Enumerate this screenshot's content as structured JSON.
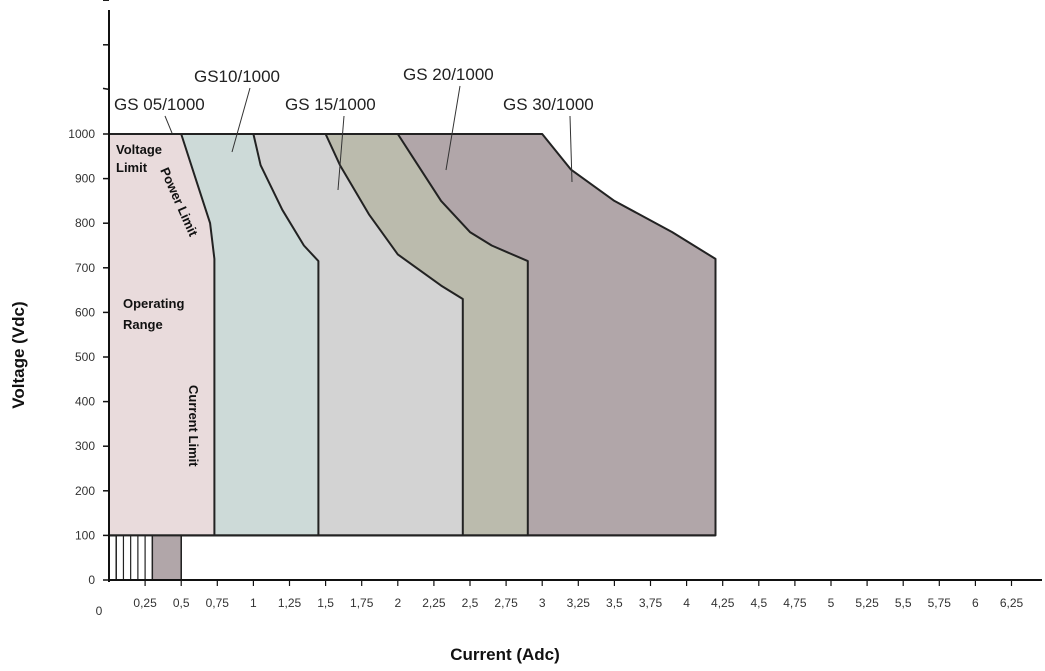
{
  "chart_data": {
    "type": "area",
    "xlabel": "Current (Adc)",
    "ylabel": "Voltage (Vdc)",
    "xlim": [
      0,
      6.5
    ],
    "ylim": [
      0,
      1000
    ],
    "x_ticks": [
      "0,25",
      "0,5",
      "0,75",
      "1",
      "1,25",
      "1,5",
      "1,75",
      "2",
      "2,25",
      "2,5",
      "2,75",
      "3",
      "3,25",
      "3,5",
      "3,75",
      "4",
      "4,25",
      "4,5",
      "4,75",
      "5",
      "5,25",
      "5,5",
      "5,75",
      "6",
      "6,25"
    ],
    "x_tick_values": [
      0.25,
      0.5,
      0.75,
      1,
      1.25,
      1.5,
      1.75,
      2,
      2.25,
      2.5,
      2.75,
      3,
      3.25,
      3.5,
      3.75,
      4,
      4.25,
      4.5,
      4.75,
      5,
      5.25,
      5.5,
      5.75,
      6,
      6.25
    ],
    "x_origin_label": "0",
    "y_ticks": [
      "0",
      "100",
      "200",
      "300",
      "400",
      "500",
      "600",
      "700",
      "800",
      "900",
      "1000"
    ],
    "y_tick_values": [
      0,
      100,
      200,
      300,
      400,
      500,
      600,
      700,
      800,
      900,
      1000
    ],
    "series": [
      {
        "name": "GS 30/1000",
        "color": "#b1a6a9",
        "points": [
          [
            0,
            100
          ],
          [
            0,
            1000
          ],
          [
            3,
            1000
          ],
          [
            3.2,
            920
          ],
          [
            3.5,
            850
          ],
          [
            3.9,
            780
          ],
          [
            4.2,
            720
          ],
          [
            4.2,
            100
          ]
        ]
      },
      {
        "name": "GS 20/1000",
        "color": "#bbbbad",
        "points": [
          [
            0,
            100
          ],
          [
            0,
            1000
          ],
          [
            2,
            1000
          ],
          [
            2.1,
            950
          ],
          [
            2.3,
            850
          ],
          [
            2.5,
            780
          ],
          [
            2.65,
            750
          ],
          [
            2.9,
            715
          ],
          [
            2.9,
            100
          ]
        ]
      },
      {
        "name": "GS 15/1000",
        "color": "#d3d3d3",
        "points": [
          [
            0,
            100
          ],
          [
            0,
            1000
          ],
          [
            1.5,
            1000
          ],
          [
            1.6,
            930
          ],
          [
            1.8,
            820
          ],
          [
            2.0,
            730
          ],
          [
            2.3,
            660
          ],
          [
            2.45,
            630
          ],
          [
            2.45,
            100
          ]
        ]
      },
      {
        "name": "GS10/1000",
        "color": "#cddad8",
        "points": [
          [
            0,
            100
          ],
          [
            0,
            1000
          ],
          [
            1,
            1000
          ],
          [
            1.05,
            930
          ],
          [
            1.2,
            830
          ],
          [
            1.35,
            750
          ],
          [
            1.45,
            715
          ],
          [
            1.45,
            100
          ]
        ]
      },
      {
        "name": "GS 05/1000",
        "color": "#e9dbdc",
        "points": [
          [
            0,
            100
          ],
          [
            0,
            1000
          ],
          [
            0.5,
            1000
          ],
          [
            0.6,
            900
          ],
          [
            0.7,
            800
          ],
          [
            0.73,
            720
          ],
          [
            0.73,
            100
          ]
        ]
      }
    ],
    "low_voltage_bars": {
      "x": [
        0.05,
        0.1,
        0.15,
        0.2,
        0.25,
        0.3,
        0.5
      ],
      "ylim": [
        0,
        100
      ],
      "fill": "#b1a6a9"
    },
    "annotations": [
      "Voltage Limit",
      "Power Limit",
      "Operating Range",
      "Current Limit"
    ]
  }
}
